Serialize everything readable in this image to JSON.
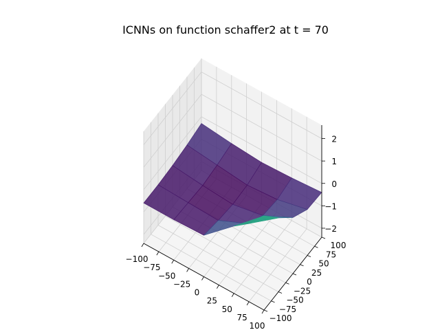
{
  "chart_data": {
    "type": "surface",
    "title": "ICNNs on function schaffer2 at t = 70",
    "xlabel": "",
    "ylabel": "",
    "zlabel": "",
    "xlim": [
      -100,
      100
    ],
    "ylim": [
      -100,
      100
    ],
    "zlim": [
      -2.4,
      2.6
    ],
    "x_ticks": [
      "−100",
      "−75",
      "−50",
      "−25",
      "0",
      "25",
      "50",
      "75",
      "100"
    ],
    "y_ticks": [
      "−100",
      "−75",
      "−50",
      "−25",
      "0",
      "25",
      "50",
      "75",
      "100"
    ],
    "z_ticks": [
      "−2",
      "−1",
      "0",
      "1",
      "2"
    ],
    "colormap": "viridis",
    "grid": true,
    "surface_grid": {
      "x": [
        -100,
        -50,
        0,
        50,
        100
      ],
      "y": [
        -100,
        -50,
        0,
        50,
        100
      ],
      "z": [
        [
          -0.6,
          -0.6,
          -0.55,
          0.6,
          1.8
        ],
        [
          -0.6,
          -0.65,
          -0.7,
          -0.1,
          0.9
        ],
        [
          -0.55,
          -0.7,
          -0.8,
          -0.55,
          0.1
        ],
        [
          -0.45,
          -0.6,
          -0.75,
          -0.65,
          -0.35
        ],
        [
          -0.3,
          -0.45,
          -0.55,
          -0.5,
          -0.4
        ]
      ]
    }
  }
}
